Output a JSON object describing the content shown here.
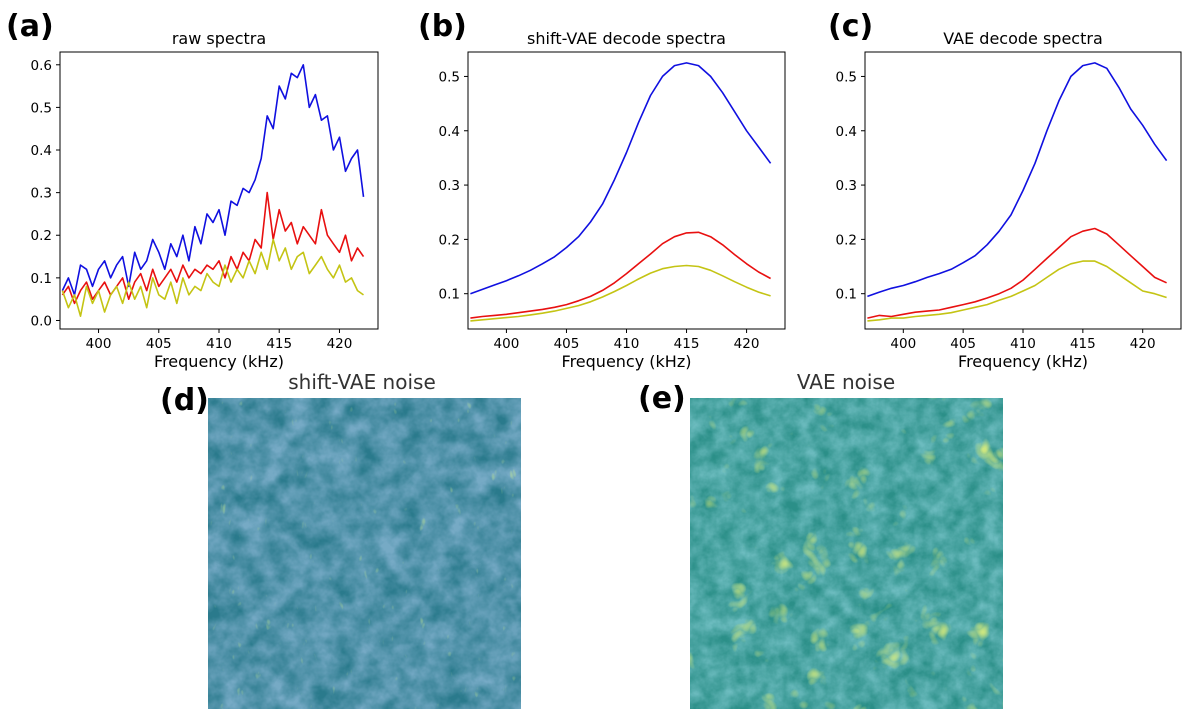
{
  "chart_data": [
    {
      "panel": "(a)",
      "type": "line",
      "title": "raw spectra",
      "xlabel": "Frequency (kHz)",
      "ylabel": "",
      "xlim": [
        396.8,
        423.2
      ],
      "ylim": [
        -0.02,
        0.63
      ],
      "xticks": [
        400,
        405,
        410,
        415,
        420
      ],
      "yticks": [
        0.0,
        0.1,
        0.2,
        0.3,
        0.4,
        0.5,
        0.6
      ],
      "ytick_labels": [
        "0.0",
        "0.1",
        "0.2",
        "0.3",
        "0.4",
        "0.5",
        "0.6"
      ],
      "grid": false,
      "series": [
        {
          "color": "#1010e0",
          "x": [
            397.0,
            397.5,
            398.0,
            398.5,
            399.0,
            399.5,
            400.0,
            400.5,
            401.0,
            401.5,
            402.0,
            402.5,
            403.0,
            403.5,
            404.0,
            404.5,
            405.0,
            405.5,
            406.0,
            406.5,
            407.0,
            407.5,
            408.0,
            408.5,
            409.0,
            409.5,
            410.0,
            410.5,
            411.0,
            411.5,
            412.0,
            412.5,
            413.0,
            413.5,
            414.0,
            414.5,
            415.0,
            415.5,
            416.0,
            416.5,
            417.0,
            417.5,
            418.0,
            418.5,
            419.0,
            419.5,
            420.0,
            420.5,
            421.0,
            421.5,
            422.0
          ],
          "y": [
            0.07,
            0.1,
            0.06,
            0.13,
            0.12,
            0.08,
            0.12,
            0.14,
            0.1,
            0.13,
            0.15,
            0.08,
            0.16,
            0.12,
            0.14,
            0.19,
            0.16,
            0.12,
            0.18,
            0.15,
            0.2,
            0.14,
            0.22,
            0.18,
            0.25,
            0.23,
            0.26,
            0.2,
            0.28,
            0.27,
            0.31,
            0.3,
            0.33,
            0.38,
            0.48,
            0.45,
            0.55,
            0.52,
            0.58,
            0.57,
            0.6,
            0.5,
            0.53,
            0.47,
            0.48,
            0.4,
            0.43,
            0.35,
            0.38,
            0.4,
            0.29
          ]
        },
        {
          "color": "#e81010",
          "x": [
            397.0,
            397.5,
            398.0,
            398.5,
            399.0,
            399.5,
            400.0,
            400.5,
            401.0,
            401.5,
            402.0,
            402.5,
            403.0,
            403.5,
            404.0,
            404.5,
            405.0,
            405.5,
            406.0,
            406.5,
            407.0,
            407.5,
            408.0,
            408.5,
            409.0,
            409.5,
            410.0,
            410.5,
            411.0,
            411.5,
            412.0,
            412.5,
            413.0,
            413.5,
            414.0,
            414.5,
            415.0,
            415.5,
            416.0,
            416.5,
            417.0,
            417.5,
            418.0,
            418.5,
            419.0,
            419.5,
            420.0,
            420.5,
            421.0,
            421.5,
            422.0
          ],
          "y": [
            0.06,
            0.08,
            0.04,
            0.07,
            0.09,
            0.05,
            0.07,
            0.09,
            0.06,
            0.08,
            0.1,
            0.05,
            0.09,
            0.11,
            0.07,
            0.12,
            0.08,
            0.1,
            0.12,
            0.09,
            0.13,
            0.1,
            0.12,
            0.11,
            0.13,
            0.12,
            0.14,
            0.1,
            0.15,
            0.12,
            0.16,
            0.14,
            0.19,
            0.17,
            0.3,
            0.19,
            0.26,
            0.21,
            0.23,
            0.18,
            0.22,
            0.2,
            0.18,
            0.26,
            0.2,
            0.18,
            0.16,
            0.2,
            0.14,
            0.17,
            0.15
          ]
        },
        {
          "color": "#c4c414",
          "x": [
            397.0,
            397.5,
            398.0,
            398.5,
            399.0,
            399.5,
            400.0,
            400.5,
            401.0,
            401.5,
            402.0,
            402.5,
            403.0,
            403.5,
            404.0,
            404.5,
            405.0,
            405.5,
            406.0,
            406.5,
            407.0,
            407.5,
            408.0,
            408.5,
            409.0,
            409.5,
            410.0,
            410.5,
            411.0,
            411.5,
            412.0,
            412.5,
            413.0,
            413.5,
            414.0,
            414.5,
            415.0,
            415.5,
            416.0,
            416.5,
            417.0,
            417.5,
            418.0,
            418.5,
            419.0,
            419.5,
            420.0,
            420.5,
            421.0,
            421.5,
            422.0
          ],
          "y": [
            0.07,
            0.03,
            0.06,
            0.01,
            0.08,
            0.04,
            0.07,
            0.02,
            0.06,
            0.08,
            0.04,
            0.09,
            0.05,
            0.08,
            0.03,
            0.1,
            0.06,
            0.05,
            0.09,
            0.04,
            0.1,
            0.06,
            0.08,
            0.07,
            0.11,
            0.09,
            0.08,
            0.13,
            0.09,
            0.12,
            0.1,
            0.14,
            0.11,
            0.16,
            0.12,
            0.19,
            0.14,
            0.17,
            0.12,
            0.15,
            0.16,
            0.11,
            0.13,
            0.15,
            0.12,
            0.1,
            0.13,
            0.09,
            0.1,
            0.07,
            0.06
          ]
        }
      ]
    },
    {
      "panel": "(b)",
      "type": "line",
      "title": "shift-VAE decode spectra",
      "xlabel": "Frequency (kHz)",
      "ylabel": "",
      "xlim": [
        396.8,
        423.2
      ],
      "ylim": [
        0.035,
        0.545
      ],
      "xticks": [
        400,
        405,
        410,
        415,
        420
      ],
      "yticks": [
        0.1,
        0.2,
        0.3,
        0.4,
        0.5
      ],
      "ytick_labels": [
        "0.1",
        "0.2",
        "0.3",
        "0.4",
        "0.5"
      ],
      "grid": false,
      "series": [
        {
          "color": "#1010e0",
          "x": [
            397,
            398,
            399,
            400,
            401,
            402,
            403,
            404,
            405,
            406,
            407,
            408,
            409,
            410,
            411,
            412,
            413,
            414,
            415,
            416,
            417,
            418,
            419,
            420,
            421,
            422
          ],
          "y": [
            0.1,
            0.108,
            0.116,
            0.124,
            0.133,
            0.143,
            0.155,
            0.168,
            0.185,
            0.205,
            0.232,
            0.265,
            0.31,
            0.36,
            0.415,
            0.465,
            0.5,
            0.52,
            0.525,
            0.52,
            0.5,
            0.47,
            0.435,
            0.4,
            0.37,
            0.34
          ]
        },
        {
          "color": "#e81010",
          "x": [
            397,
            398,
            399,
            400,
            401,
            402,
            403,
            404,
            405,
            406,
            407,
            408,
            409,
            410,
            411,
            412,
            413,
            414,
            415,
            416,
            417,
            418,
            419,
            420,
            421,
            422
          ],
          "y": [
            0.055,
            0.058,
            0.06,
            0.062,
            0.065,
            0.068,
            0.071,
            0.075,
            0.08,
            0.087,
            0.095,
            0.106,
            0.12,
            0.137,
            0.155,
            0.173,
            0.192,
            0.205,
            0.212,
            0.213,
            0.205,
            0.19,
            0.172,
            0.155,
            0.14,
            0.128
          ]
        },
        {
          "color": "#c4c414",
          "x": [
            397,
            398,
            399,
            400,
            401,
            402,
            403,
            404,
            405,
            406,
            407,
            408,
            409,
            410,
            411,
            412,
            413,
            414,
            415,
            416,
            417,
            418,
            419,
            420,
            421,
            422
          ],
          "y": [
            0.05,
            0.052,
            0.054,
            0.056,
            0.058,
            0.061,
            0.064,
            0.068,
            0.073,
            0.078,
            0.085,
            0.094,
            0.104,
            0.115,
            0.127,
            0.138,
            0.146,
            0.15,
            0.152,
            0.15,
            0.143,
            0.133,
            0.122,
            0.112,
            0.103,
            0.096
          ]
        }
      ]
    },
    {
      "panel": "(c)",
      "type": "line",
      "title": "VAE decode spectra",
      "xlabel": "Frequency (kHz)",
      "ylabel": "",
      "xlim": [
        396.8,
        423.2
      ],
      "ylim": [
        0.035,
        0.545
      ],
      "xticks": [
        400,
        405,
        410,
        415,
        420
      ],
      "yticks": [
        0.1,
        0.2,
        0.3,
        0.4,
        0.5
      ],
      "ytick_labels": [
        "0.1",
        "0.2",
        "0.3",
        "0.4",
        "0.5"
      ],
      "grid": false,
      "series": [
        {
          "color": "#1010e0",
          "x": [
            397,
            398,
            399,
            400,
            401,
            402,
            403,
            404,
            405,
            406,
            407,
            408,
            409,
            410,
            411,
            412,
            413,
            414,
            415,
            416,
            417,
            418,
            419,
            420,
            421,
            422
          ],
          "y": [
            0.095,
            0.103,
            0.11,
            0.115,
            0.122,
            0.13,
            0.137,
            0.145,
            0.157,
            0.17,
            0.19,
            0.215,
            0.245,
            0.29,
            0.34,
            0.4,
            0.455,
            0.5,
            0.52,
            0.525,
            0.515,
            0.48,
            0.44,
            0.41,
            0.375,
            0.345
          ]
        },
        {
          "color": "#e81010",
          "x": [
            397,
            398,
            399,
            400,
            401,
            402,
            403,
            404,
            405,
            406,
            407,
            408,
            409,
            410,
            411,
            412,
            413,
            414,
            415,
            416,
            417,
            418,
            419,
            420,
            421,
            422
          ],
          "y": [
            0.055,
            0.06,
            0.058,
            0.062,
            0.066,
            0.068,
            0.07,
            0.075,
            0.08,
            0.085,
            0.092,
            0.1,
            0.11,
            0.125,
            0.145,
            0.165,
            0.185,
            0.205,
            0.215,
            0.22,
            0.21,
            0.19,
            0.17,
            0.15,
            0.13,
            0.12
          ]
        },
        {
          "color": "#c4c414",
          "x": [
            397,
            398,
            399,
            400,
            401,
            402,
            403,
            404,
            405,
            406,
            407,
            408,
            409,
            410,
            411,
            412,
            413,
            414,
            415,
            416,
            417,
            418,
            419,
            420,
            421,
            422
          ],
          "y": [
            0.05,
            0.052,
            0.055,
            0.055,
            0.058,
            0.06,
            0.062,
            0.065,
            0.07,
            0.075,
            0.08,
            0.088,
            0.095,
            0.105,
            0.115,
            0.13,
            0.145,
            0.155,
            0.16,
            0.16,
            0.15,
            0.135,
            0.12,
            0.105,
            0.1,
            0.093
          ]
        }
      ]
    }
  ],
  "panels": [
    {
      "letter": "(a)"
    },
    {
      "letter": "(b)"
    },
    {
      "letter": "(c)"
    },
    {
      "letter": "(d)",
      "title": "shift-VAE noise"
    },
    {
      "letter": "(e)",
      "title": "VAE noise"
    }
  ],
  "images": {
    "d": {
      "colormap": "viridis",
      "pattern": "shift-vae-noise-map"
    },
    "e": {
      "colormap": "viridis",
      "pattern": "vae-noise-map"
    }
  }
}
